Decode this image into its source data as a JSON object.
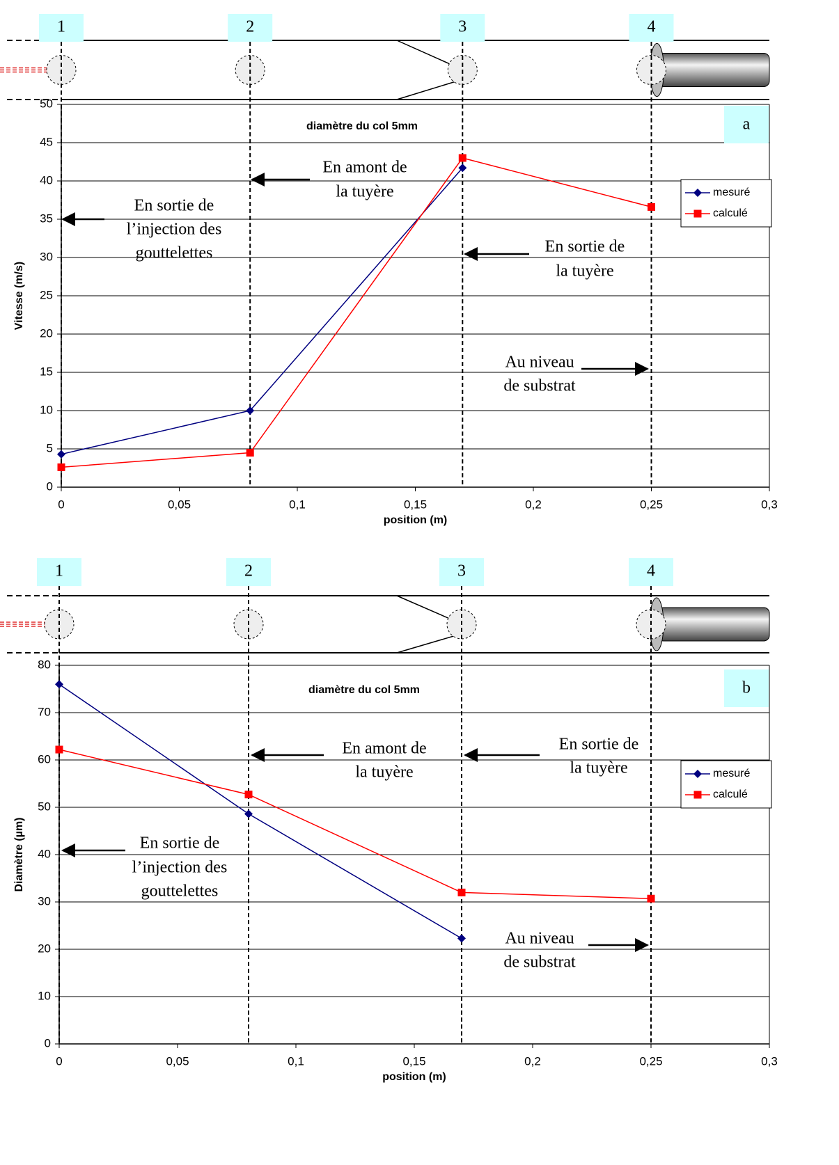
{
  "chart_data": [
    {
      "type": "line",
      "panel_label": "a",
      "title": "diamètre du col 5mm",
      "x_label": "position (m)",
      "y_label": "Vitesse (m/s)",
      "xlim": [
        0,
        0.3
      ],
      "xticks": [
        0,
        {
          "value": 0.05,
          "label": "0,05"
        },
        {
          "value": 0.1,
          "label": "0,1"
        },
        {
          "value": 0.15,
          "label": "0,15"
        },
        {
          "value": 0.2,
          "label": "0,2"
        },
        {
          "value": 0.25,
          "label": "0,25"
        },
        {
          "value": 0.3,
          "label": "0,3"
        }
      ],
      "ylim": [
        0,
        50
      ],
      "yticks": [
        0,
        5,
        10,
        15,
        20,
        25,
        30,
        35,
        40,
        45,
        50
      ],
      "grid": true,
      "stations": [
        {
          "label": "1",
          "x": 0
        },
        {
          "label": "2",
          "x": 0.08
        },
        {
          "label": "3",
          "x": 0.17
        },
        {
          "label": "4",
          "x": 0.25
        }
      ],
      "series": [
        {
          "name": "mesuré",
          "color": "#000080",
          "marker": "diamond",
          "x": [
            0,
            0.08,
            0.17
          ],
          "values": [
            4.3,
            10,
            41.7
          ]
        },
        {
          "name": "calculé",
          "color": "#ff0000",
          "marker": "square",
          "x": [
            0,
            0.08,
            0.17,
            0.25
          ],
          "values": [
            2.6,
            4.5,
            43,
            36.6
          ]
        }
      ],
      "annotations": [
        {
          "lines": [
            "En sortie de",
            "l’injection des",
            "gouttelettes"
          ]
        },
        {
          "lines": [
            "En amont de",
            "la tuyère"
          ]
        },
        {
          "lines": [
            "En sortie de",
            "la tuyère"
          ]
        },
        {
          "lines": [
            "Au niveau",
            "de substrat"
          ]
        }
      ]
    },
    {
      "type": "line",
      "panel_label": "b",
      "title": "diamètre du col 5mm",
      "x_label": "position (m)",
      "y_label": "Diamètre (µm)",
      "xlim": [
        0,
        0.3
      ],
      "xticks": [
        0,
        {
          "value": 0.05,
          "label": "0,05"
        },
        {
          "value": 0.1,
          "label": "0,1"
        },
        {
          "value": 0.15,
          "label": "0,15"
        },
        {
          "value": 0.2,
          "label": "0,2"
        },
        {
          "value": 0.25,
          "label": "0,25"
        },
        {
          "value": 0.3,
          "label": "0,3"
        }
      ],
      "ylim": [
        0,
        80
      ],
      "yticks": [
        0,
        10,
        20,
        30,
        40,
        50,
        60,
        70,
        80
      ],
      "grid": true,
      "stations": [
        {
          "label": "1",
          "x": 0
        },
        {
          "label": "2",
          "x": 0.08
        },
        {
          "label": "3",
          "x": 0.17
        },
        {
          "label": "4",
          "x": 0.25
        }
      ],
      "series": [
        {
          "name": "mesuré",
          "color": "#000080",
          "marker": "diamond",
          "x": [
            0,
            0.08,
            0.17
          ],
          "values": [
            76,
            48.6,
            22.3
          ]
        },
        {
          "name": "calculé",
          "color": "#ff0000",
          "marker": "square",
          "x": [
            0,
            0.08,
            0.17,
            0.25
          ],
          "values": [
            62.2,
            52.7,
            32,
            30.7
          ]
        }
      ],
      "annotations": [
        {
          "lines": [
            "En sortie de",
            "l’injection des",
            "gouttelettes"
          ]
        },
        {
          "lines": [
            "En amont de",
            "la tuyère"
          ]
        },
        {
          "lines": [
            "En sortie de",
            "la tuyère"
          ]
        },
        {
          "lines": [
            "Au niveau",
            "de substrat"
          ]
        }
      ]
    }
  ]
}
